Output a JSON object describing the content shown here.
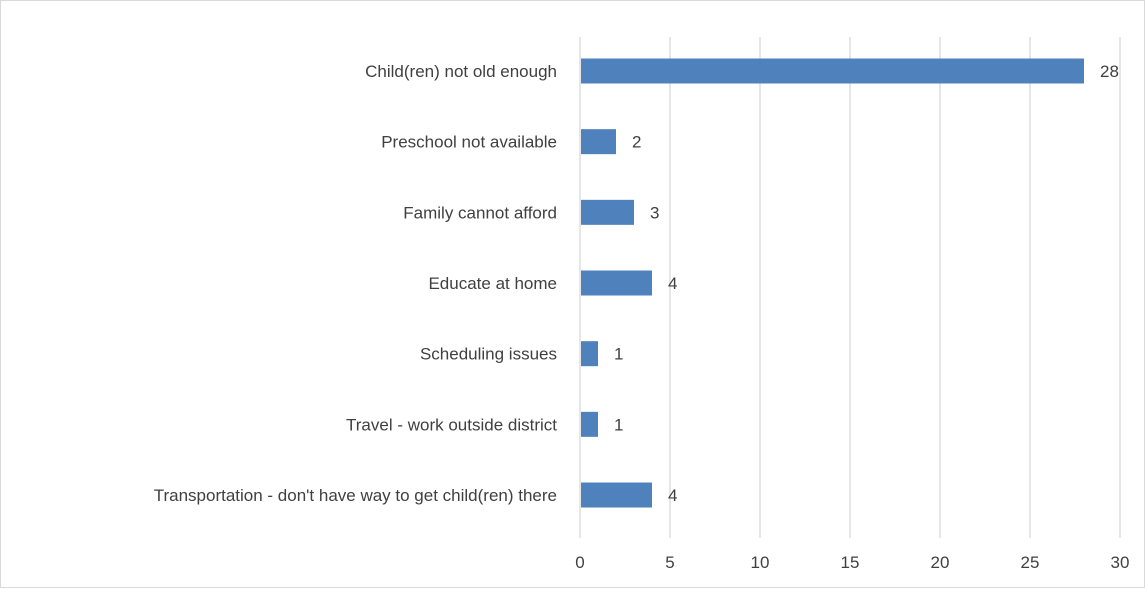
{
  "chart_data": {
    "type": "bar",
    "orientation": "horizontal",
    "categories": [
      "Child(ren) not old enough",
      "Preschool not available",
      "Family cannot afford",
      "Educate at home",
      "Scheduling issues",
      "Travel - work outside district",
      "Transportation - don't have way to get child(ren) there"
    ],
    "values": [
      28,
      2,
      3,
      4,
      1,
      1,
      4
    ],
    "xlim": [
      0,
      30
    ],
    "xticks": [
      0,
      5,
      10,
      15,
      20,
      25,
      30
    ],
    "grid": true,
    "legend": "none",
    "bar_color": "#4f81bd",
    "gridline_color": "#d9d9d9"
  }
}
